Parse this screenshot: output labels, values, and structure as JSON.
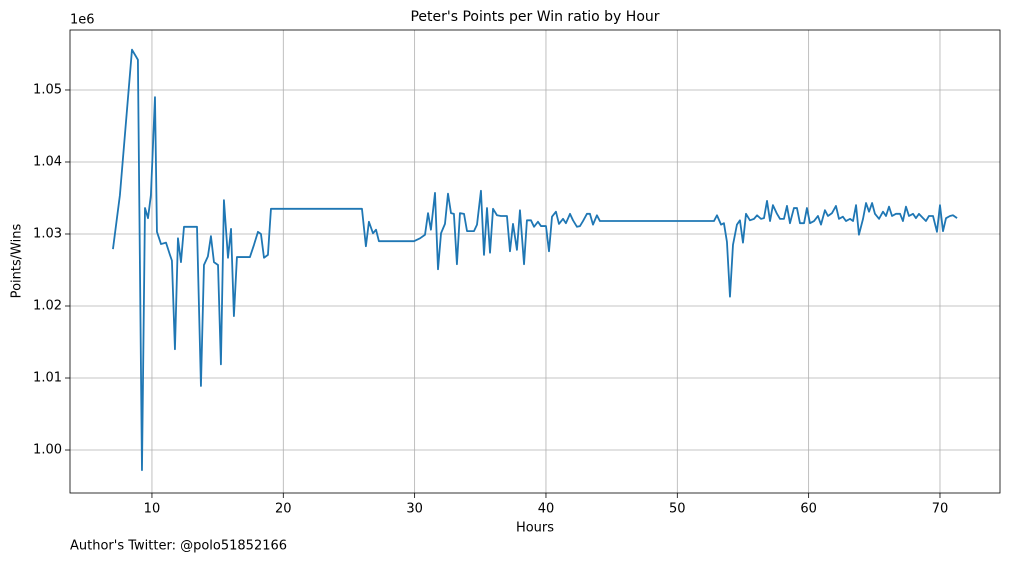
{
  "chart_data": {
    "type": "line",
    "title": "Peter's Points per Win ratio by Hour",
    "xlabel": "Hours",
    "ylabel": "Points/Wins",
    "y_offset_label": "1e6",
    "footnote": "Author's Twitter: @polo51852166",
    "color": "#1f77b4",
    "grid": true,
    "xlim": [
      3.76,
      74.57
    ],
    "ylim": [
      0.99403,
      1.05833
    ],
    "xticks": [
      10,
      20,
      30,
      40,
      50,
      60,
      70
    ],
    "yticks": [
      {
        "value": 1.0,
        "label": "1.00"
      },
      {
        "value": 1.01,
        "label": "1.01"
      },
      {
        "value": 1.02,
        "label": "1.02"
      },
      {
        "value": 1.03,
        "label": "1.03"
      },
      {
        "value": 1.04,
        "label": "1.04"
      },
      {
        "value": 1.05,
        "label": "1.05"
      }
    ],
    "x": [
      7.03,
      7.56,
      8.48,
      8.93,
      9.24,
      9.47,
      9.7,
      9.92,
      10.23,
      10.38,
      10.69,
      11.07,
      11.37,
      11.52,
      11.75,
      11.98,
      12.21,
      12.44,
      13.43,
      13.73,
      13.96,
      14.26,
      14.49,
      14.72,
      15.03,
      15.25,
      15.48,
      15.79,
      16.02,
      16.24,
      16.47,
      17.46,
      17.77,
      18.07,
      18.3,
      18.53,
      18.83,
      19.06,
      25.99,
      26.29,
      26.52,
      26.83,
      27.06,
      27.28,
      29.95,
      30.41,
      30.79,
      31.02,
      31.24,
      31.55,
      31.78,
      32.01,
      32.31,
      32.54,
      32.77,
      32.99,
      33.22,
      33.45,
      33.76,
      33.99,
      34.52,
      34.75,
      35.05,
      35.28,
      35.51,
      35.74,
      35.97,
      36.27,
      36.57,
      37.03,
      37.26,
      37.49,
      37.79,
      38.02,
      38.33,
      38.55,
      38.86,
      39.09,
      39.39,
      39.62,
      40.0,
      40.23,
      40.46,
      40.76,
      40.99,
      41.3,
      41.52,
      41.83,
      42.06,
      42.36,
      42.59,
      42.82,
      43.12,
      43.35,
      43.58,
      43.88,
      44.11,
      52.79,
      53.02,
      53.33,
      53.55,
      53.78,
      54.01,
      54.24,
      54.54,
      54.77,
      55.0,
      55.23,
      55.53,
      55.84,
      56.07,
      56.37,
      56.6,
      56.83,
      57.06,
      57.28,
      57.59,
      57.82,
      58.12,
      58.35,
      58.58,
      58.88,
      59.11,
      59.34,
      59.65,
      59.87,
      60.1,
      60.41,
      60.71,
      60.94,
      61.24,
      61.47,
      61.78,
      62.08,
      62.31,
      62.61,
      62.84,
      63.15,
      63.38,
      63.61,
      63.83,
      64.14,
      64.37,
      64.6,
      64.83,
      65.05,
      65.36,
      65.66,
      65.89,
      66.12,
      66.35,
      66.65,
      66.96,
      67.18,
      67.41,
      67.64,
      67.95,
      68.17,
      68.4,
      68.71,
      68.93,
      69.16,
      69.47,
      69.77,
      70.0,
      70.23,
      70.46,
      70.76,
      70.99,
      71.3
    ],
    "values": [
      1.0279,
      1.0354,
      1.0556,
      1.0542,
      0.9972,
      1.0336,
      1.0322,
      1.0354,
      1.049,
      1.0303,
      1.0286,
      1.0288,
      1.0271,
      1.0263,
      1.014,
      1.0294,
      1.0261,
      1.031,
      1.031,
      1.0089,
      1.0257,
      1.0269,
      1.0297,
      1.0261,
      1.0257,
      1.0119,
      1.0347,
      1.0267,
      1.0307,
      1.0186,
      1.0268,
      1.0268,
      1.0285,
      1.0303,
      1.03,
      1.0267,
      1.0271,
      1.0335,
      1.0335,
      1.0283,
      1.0317,
      1.0301,
      1.0306,
      1.029,
      1.029,
      1.0294,
      1.0299,
      1.0329,
      1.0306,
      1.0357,
      1.0251,
      1.0301,
      1.0314,
      1.0356,
      1.0329,
      1.0328,
      1.0258,
      1.0329,
      1.0328,
      1.0304,
      1.0304,
      1.0313,
      1.036,
      1.0271,
      1.0336,
      1.0274,
      1.0335,
      1.0326,
      1.0325,
      1.0325,
      1.0276,
      1.0314,
      1.0278,
      1.0333,
      1.0258,
      1.0319,
      1.0319,
      1.031,
      1.0317,
      1.0311,
      1.0311,
      1.0276,
      1.0324,
      1.0331,
      1.0314,
      1.0321,
      1.0315,
      1.0328,
      1.0319,
      1.031,
      1.0311,
      1.0318,
      1.0328,
      1.0328,
      1.0313,
      1.0326,
      1.0318,
      1.0318,
      1.0326,
      1.0313,
      1.0315,
      1.0289,
      1.0213,
      1.0285,
      1.0313,
      1.0319,
      1.0288,
      1.0328,
      1.0319,
      1.0321,
      1.0326,
      1.0321,
      1.0322,
      1.0346,
      1.0318,
      1.034,
      1.0328,
      1.0321,
      1.0321,
      1.0339,
      1.0315,
      1.0336,
      1.0336,
      1.0315,
      1.0315,
      1.0336,
      1.0315,
      1.0318,
      1.0325,
      1.0313,
      1.0333,
      1.0325,
      1.0329,
      1.0339,
      1.0321,
      1.0324,
      1.0318,
      1.0321,
      1.0318,
      1.034,
      1.0299,
      1.0321,
      1.0343,
      1.0331,
      1.0343,
      1.0328,
      1.0321,
      1.0331,
      1.0325,
      1.0338,
      1.0325,
      1.0328,
      1.0328,
      1.0318,
      1.0338,
      1.0325,
      1.0328,
      1.0322,
      1.0328,
      1.0322,
      1.0318,
      1.0325,
      1.0325,
      1.0303,
      1.034,
      1.0304,
      1.0322,
      1.0325,
      1.0326,
      1.0322
    ]
  }
}
